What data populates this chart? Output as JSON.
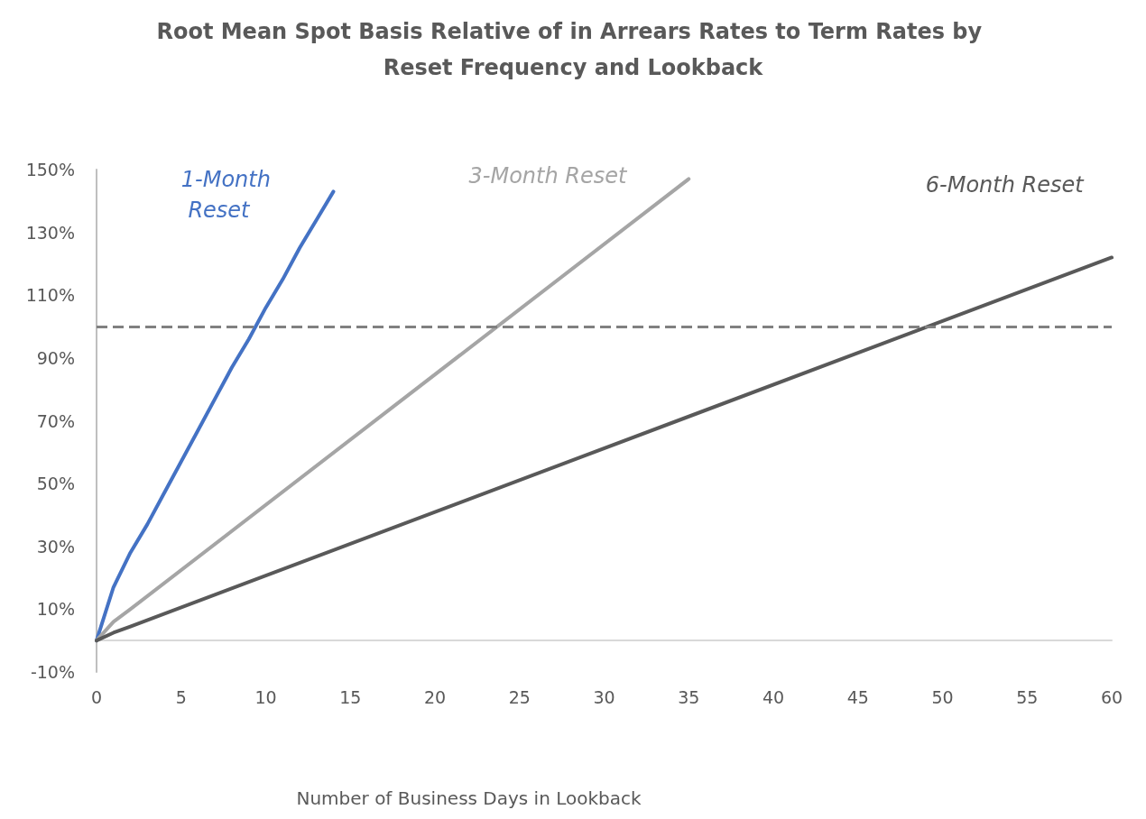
{
  "chart_data": {
    "type": "line",
    "title": "Root Mean Spot Basis Relative of in Arrears Rates to Term Rates by Reset Frequency and Lookback",
    "xlabel": "Number of Business Days in Lookback",
    "xlim": [
      0,
      60
    ],
    "xticks": [
      0,
      5,
      10,
      15,
      20,
      25,
      30,
      35,
      40,
      45,
      50,
      55,
      60
    ],
    "ylim": [
      -10,
      150
    ],
    "yticks": [
      {
        "value": -10,
        "label": "-10%"
      },
      {
        "value": 10,
        "label": "10%"
      },
      {
        "value": 30,
        "label": "30%"
      },
      {
        "value": 50,
        "label": "50%"
      },
      {
        "value": 70,
        "label": "70%"
      },
      {
        "value": 90,
        "label": "90%"
      },
      {
        "value": 110,
        "label": "110%"
      },
      {
        "value": 130,
        "label": "130%"
      },
      {
        "value": 150,
        "label": "150%"
      }
    ],
    "grid": false,
    "legend": false,
    "marker": "none",
    "line_style": "solid",
    "series": [
      {
        "name": "1-Month Reset",
        "color": "#4472c4",
        "x": [
          0,
          1,
          2,
          3,
          4,
          5,
          6,
          7,
          8,
          9,
          10,
          11,
          12,
          13,
          14
        ],
        "values": [
          0,
          17,
          28,
          37,
          47,
          57,
          67,
          77,
          87,
          96,
          106,
          115,
          125,
          134,
          143
        ]
      },
      {
        "name": "3-Month Reset",
        "color": "#a5a5a5",
        "x": [
          0,
          1,
          2,
          35
        ],
        "values": [
          0,
          6,
          10,
          147
        ]
      },
      {
        "name": "6-Month Reset",
        "color": "#595959",
        "x": [
          0,
          1,
          2,
          60
        ],
        "values": [
          0,
          2.5,
          4.5,
          122
        ]
      }
    ],
    "ref_lines": [
      {
        "axis": "y",
        "value": 100,
        "label": null,
        "color": "#808080",
        "line_style": "dashed"
      }
    ]
  }
}
